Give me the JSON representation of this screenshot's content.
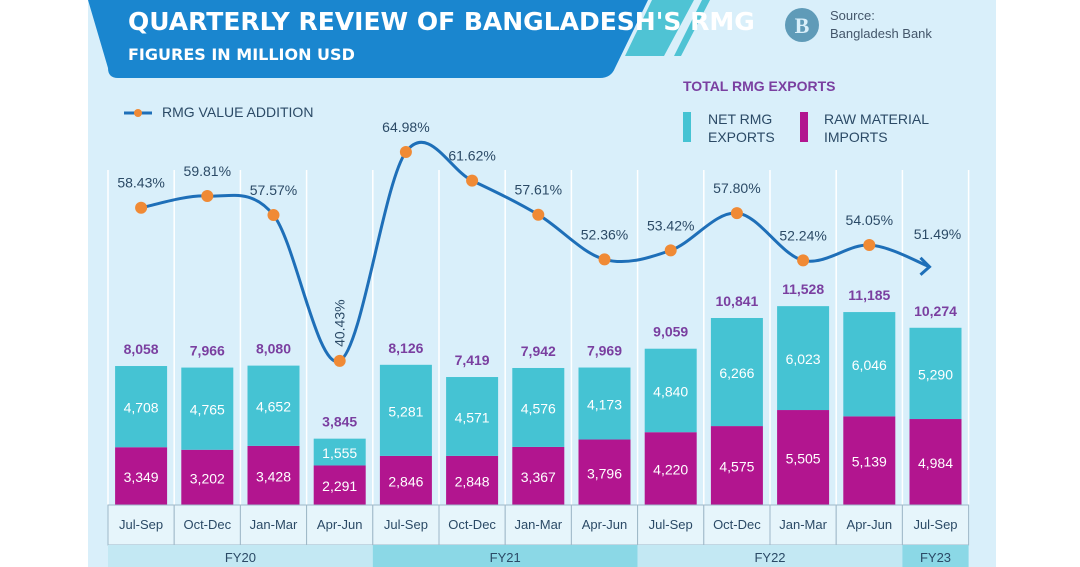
{
  "header": {
    "title": "QUARTERLY REVIEW OF BANGLADESH'S RMG",
    "subtitle": "FIGURES IN MILLION USD",
    "source_label": "Source:",
    "source_name": "Bangladesh Bank",
    "logo_icon": "bangladesh-bank-logo"
  },
  "colors": {
    "background": "#d9effa",
    "banner": "#1a86cf",
    "net_exports": "#45c3d3",
    "raw_imports": "#b2158f",
    "line": "#1e6fb8",
    "marker": "#f08a35",
    "total_label": "#7a3fa0"
  },
  "chart_data": {
    "type": "bar",
    "stacked": true,
    "title": "QUARTERLY REVIEW OF BANGLADESH'S RMG",
    "subtitle": "FIGURES IN MILLION USD",
    "categories": [
      "Jul-Sep",
      "Oct-Dec",
      "Jan-Mar",
      "Apr-Jun",
      "Jul-Sep",
      "Oct-Dec",
      "Jan-Mar",
      "Apr-Jun",
      "Jul-Sep",
      "Oct-Dec",
      "Jan-Mar",
      "Apr-Jun",
      "Jul-Sep"
    ],
    "groups": [
      {
        "label": "FY20",
        "count": 4
      },
      {
        "label": "FY21",
        "count": 4
      },
      {
        "label": "FY22",
        "count": 4
      },
      {
        "label": "FY23",
        "count": 1
      }
    ],
    "legend_title": "TOTAL RMG EXPORTS",
    "series": [
      {
        "name": "RAW MATERIAL IMPORTS",
        "values": [
          3349,
          3202,
          3428,
          2291,
          2846,
          2848,
          3367,
          3796,
          4220,
          4575,
          5505,
          5139,
          4984
        ]
      },
      {
        "name": "NET RMG EXPORTS",
        "values": [
          4708,
          4765,
          4652,
          1555,
          5281,
          4571,
          4576,
          4173,
          4840,
          6266,
          6023,
          6046,
          5290
        ]
      }
    ],
    "totals": [
      8058,
      7966,
      8080,
      3845,
      8126,
      7419,
      7942,
      7969,
      9059,
      10841,
      11528,
      11185,
      10274
    ],
    "line_series": {
      "name": "RMG VALUE ADDITION",
      "unit": "%",
      "values": [
        58.43,
        59.81,
        57.57,
        40.43,
        64.98,
        61.62,
        57.61,
        52.36,
        53.42,
        57.8,
        52.24,
        54.05,
        51.49
      ],
      "labels": [
        "58.43%",
        "59.81%",
        "57.57%",
        "40.43%",
        "64.98%",
        "61.62%",
        "57.61%",
        "52.36%",
        "53.42%",
        "57.80%",
        "52.24%",
        "54.05%",
        "51.49%"
      ]
    },
    "legend_placement": "top-right",
    "grid": false
  }
}
